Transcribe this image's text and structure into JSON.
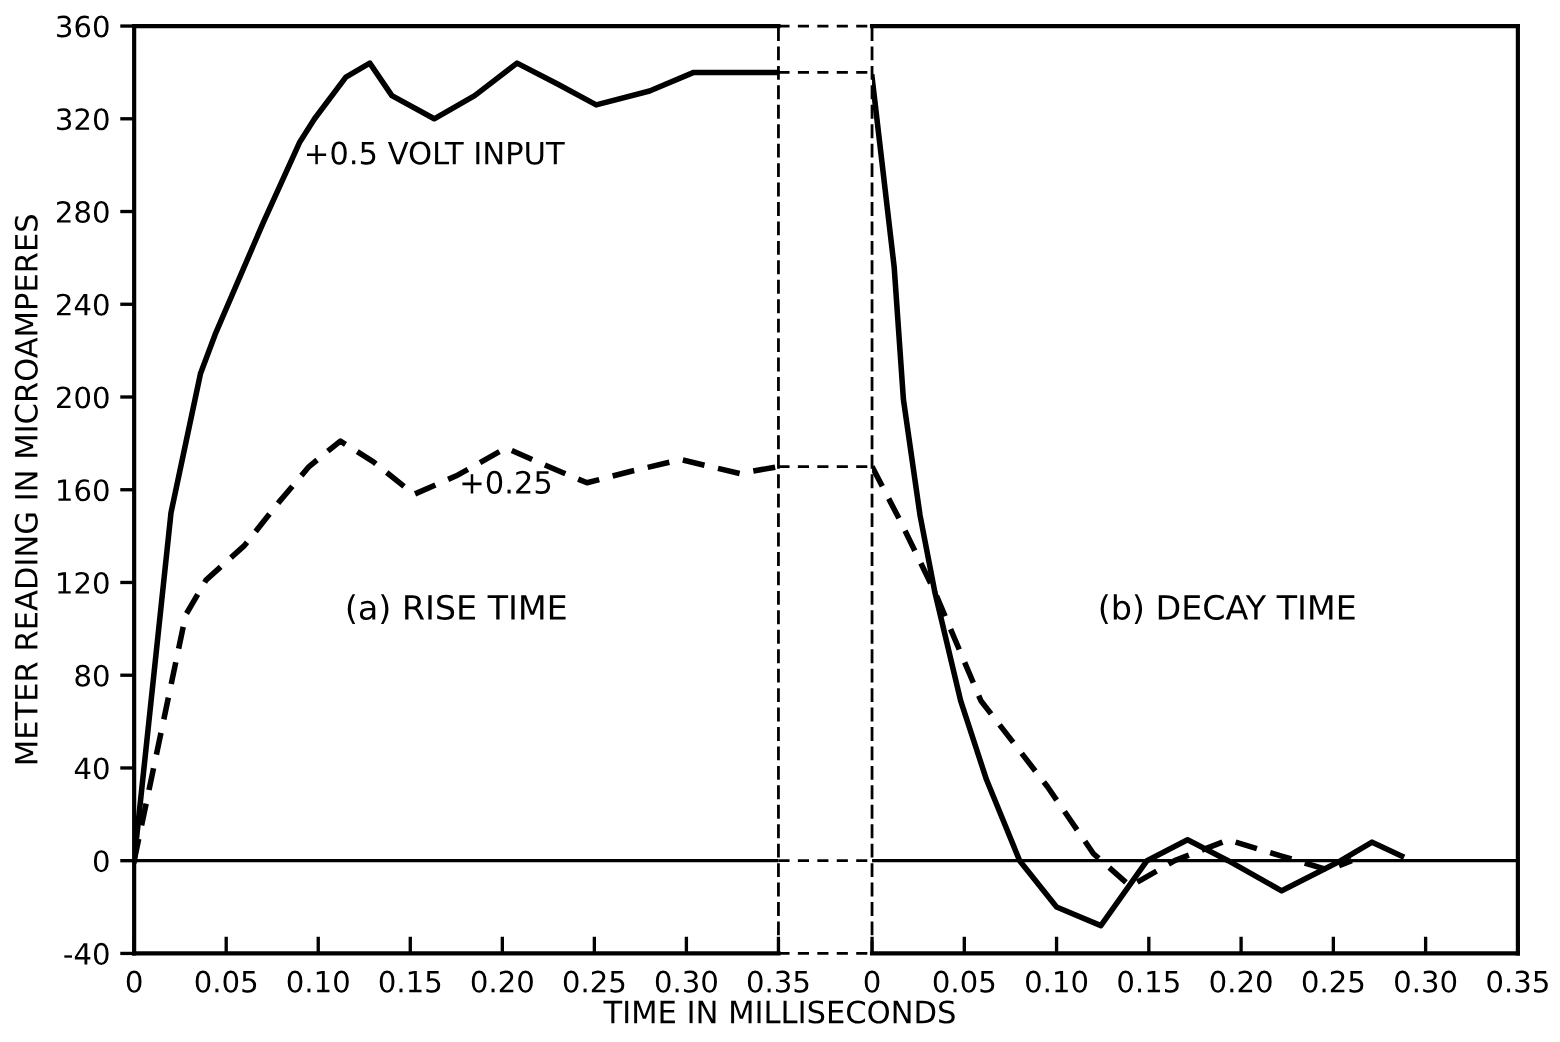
{
  "chart_data": [
    {
      "type": "line",
      "ylabel": "METER READING IN MICROAMPERES",
      "xlabel": "TIME IN MILLISECONDS",
      "xlim": [
        0,
        0.35
      ],
      "ylim": [
        -40,
        360
      ],
      "xticks": [
        0,
        0.05,
        {
          "value": 0.1,
          "label": "0.10"
        },
        0.15,
        {
          "value": 0.2,
          "label": "0.20"
        },
        0.25,
        {
          "value": 0.3,
          "label": "0.30"
        },
        0.35
      ],
      "yticks": [
        -40,
        0,
        40,
        80,
        120,
        160,
        200,
        240,
        280,
        320,
        360
      ],
      "grid": false,
      "legend": false,
      "marker": "none",
      "series": [
        {
          "color": "#000000",
          "line_style": "solid",
          "x": [
            0,
            0.02,
            0.036,
            0.044,
            0.07,
            0.09,
            0.098,
            0.115,
            0.128,
            0.14,
            0.163,
            0.185,
            0.208,
            0.23,
            0.251,
            0.28,
            0.304,
            0.35
          ],
          "values": [
            0,
            150,
            210,
            227,
            275,
            310,
            320,
            338,
            344,
            330,
            320,
            330,
            344,
            335,
            326,
            332,
            340,
            340
          ]
        },
        {
          "color": "#000000",
          "line_style": "dashed",
          "x": [
            0,
            0.028,
            0.039,
            0.06,
            0.079,
            0.095,
            0.112,
            0.13,
            0.152,
            0.175,
            0.202,
            0.225,
            0.246,
            0.27,
            0.297,
            0.329,
            0.35
          ],
          "values": [
            0,
            106,
            121,
            136,
            155,
            170,
            181,
            172,
            158,
            166,
            178,
            170,
            163,
            168,
            173,
            167,
            170
          ]
        }
      ],
      "ref_lines": [
        {
          "axis": "y",
          "value": 0,
          "color": "#000000"
        }
      ],
      "annotations": [
        {
          "text": "+0.5 VOLT INPUT",
          "x": 0.163,
          "y": 320
        },
        {
          "text": "+0.25",
          "x": 0.202,
          "y": 178
        },
        "(a) RISE TIME"
      ]
    },
    {
      "type": "line",
      "xlim": [
        0,
        0.35
      ],
      "ylim": [
        -40,
        360
      ],
      "xticks": [
        0,
        0.05,
        {
          "value": 0.1,
          "label": "0.10"
        },
        0.15,
        {
          "value": 0.2,
          "label": "0.20"
        },
        0.25,
        {
          "value": 0.3,
          "label": "0.30"
        },
        0.35
      ],
      "tick_labels": "x",
      "grid": false,
      "legend": false,
      "marker": "none",
      "series": [
        {
          "color": "#000000",
          "line_style": "solid",
          "x": [
            0,
            0.012,
            0.017,
            0.026,
            0.034,
            0.048,
            0.062,
            0.08,
            0.1,
            0.124,
            0.149,
            0.171,
            0.193,
            0.222,
            0.254,
            0.271,
            0.287
          ],
          "values": [
            338,
            256,
            199,
            149,
            116,
            69,
            35,
            0,
            -20,
            -28,
            0,
            9,
            0,
            -13,
            0,
            8,
            2
          ]
        },
        {
          "color": "#000000",
          "line_style": "dashed",
          "x": [
            0,
            0.015,
            0.034,
            0.059,
            0.095,
            0.12,
            0.14,
            0.164,
            0.193,
            0.222,
            0.247,
            0.26
          ],
          "values": [
            170,
            147,
            116,
            69,
            32,
            3,
            -11,
            0,
            9,
            2,
            -4,
            0
          ]
        }
      ],
      "ref_lines": [
        {
          "axis": "y",
          "value": 0,
          "color": "#000000"
        }
      ],
      "annotations": [
        "(b) DECAY TIME"
      ]
    }
  ]
}
